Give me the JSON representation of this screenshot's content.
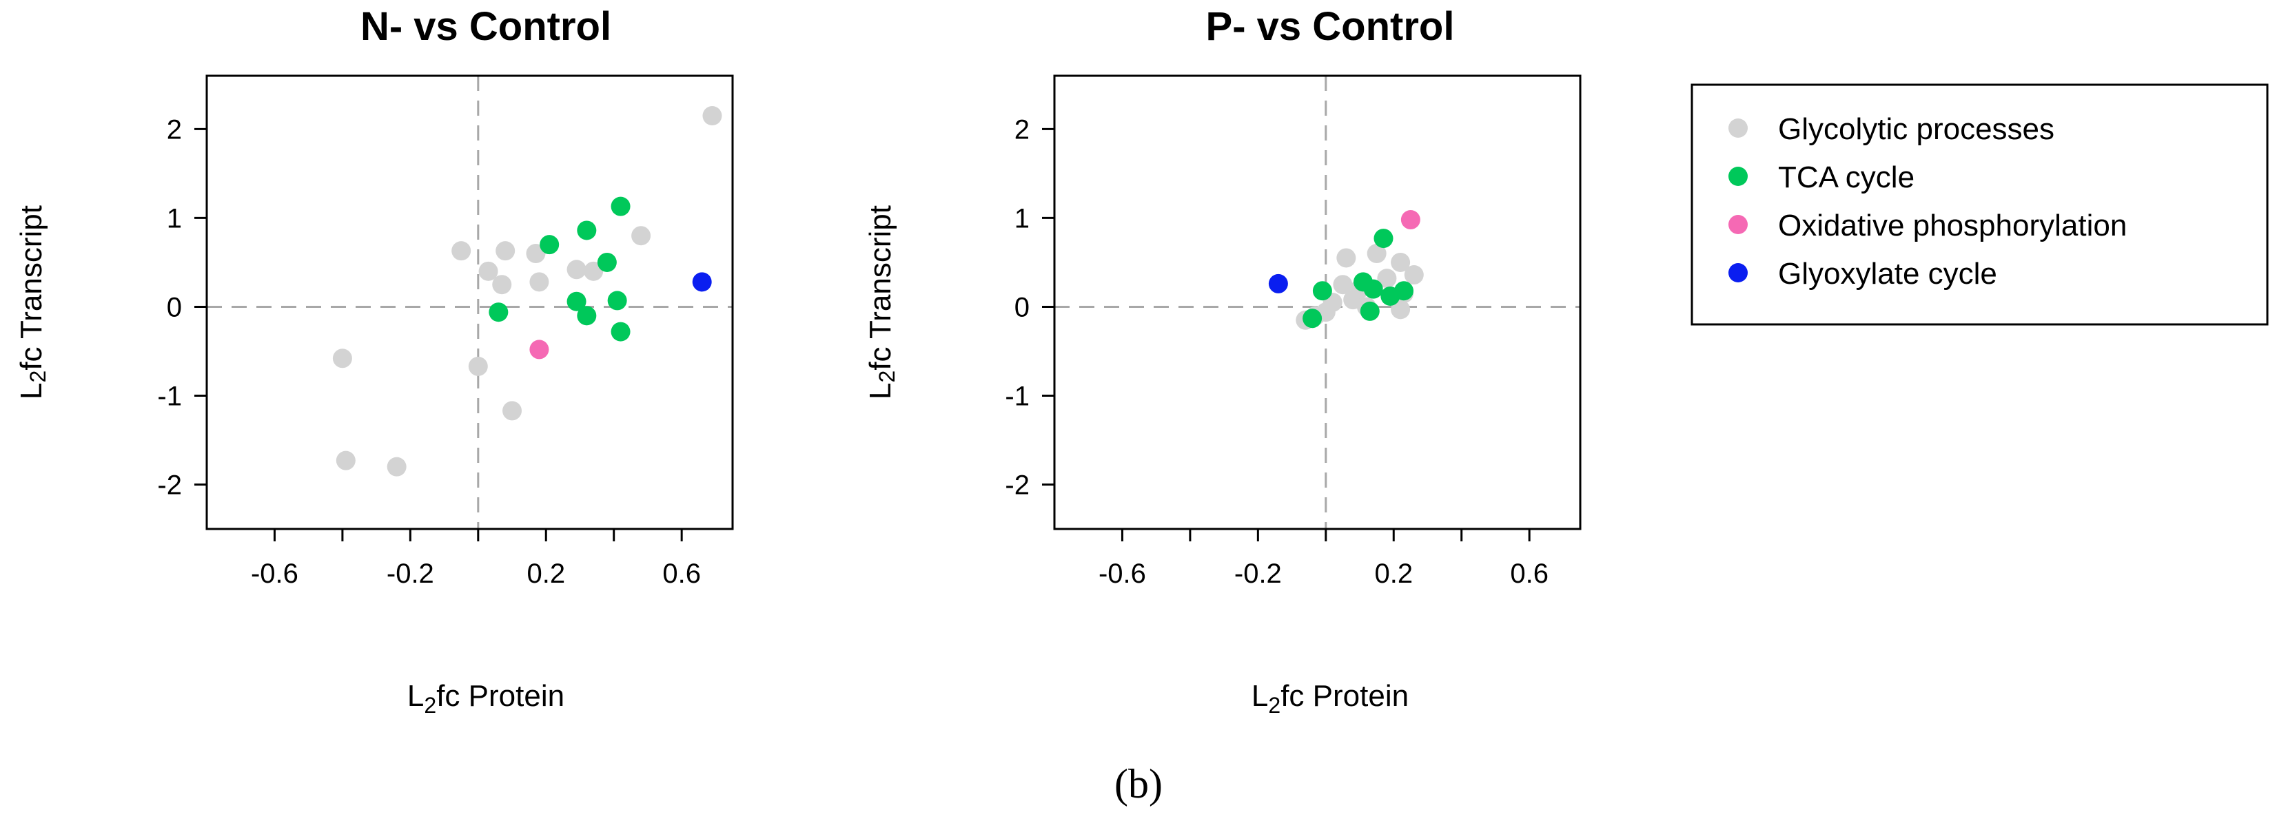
{
  "chart_data": [
    {
      "type": "scatter",
      "title": "N- vs Control",
      "xlabel": {
        "main": "L",
        "sub": "2",
        "rest": "fc Protein"
      },
      "ylabel": {
        "main": "L",
        "sub": "2",
        "rest": "fc Transcript"
      },
      "xlim": [
        -0.8,
        0.75
      ],
      "ylim": [
        -2.5,
        2.6
      ],
      "xticks": [
        -0.6,
        -0.4,
        -0.2,
        0,
        0.2,
        0.4,
        0.6
      ],
      "xtick_labels": [
        "-0.6",
        "",
        "-0.2",
        "",
        "0.2",
        "",
        "0.6"
      ],
      "yticks": [
        -2,
        -1,
        0,
        1,
        2
      ],
      "ytick_labels": [
        "-2",
        "-1",
        "0",
        "1",
        "2"
      ],
      "reference_lines": {
        "x": 0,
        "y": 0
      },
      "series": [
        {
          "name": "Glycolytic processes",
          "points": [
            [
              -0.4,
              -0.58
            ],
            [
              -0.39,
              -1.73
            ],
            [
              -0.24,
              -1.8
            ],
            [
              -0.05,
              0.63
            ],
            [
              0.0,
              -0.67
            ],
            [
              0.03,
              0.4
            ],
            [
              0.07,
              0.25
            ],
            [
              0.08,
              0.63
            ],
            [
              0.1,
              -1.17
            ],
            [
              0.17,
              0.6
            ],
            [
              0.18,
              0.28
            ],
            [
              0.29,
              0.42
            ],
            [
              0.34,
              0.4
            ],
            [
              0.48,
              0.8
            ],
            [
              0.69,
              2.15
            ]
          ]
        },
        {
          "name": "TCA cycle",
          "points": [
            [
              0.06,
              -0.06
            ],
            [
              0.21,
              0.7
            ],
            [
              0.29,
              0.06
            ],
            [
              0.32,
              -0.1
            ],
            [
              0.32,
              0.86
            ],
            [
              0.38,
              0.5
            ],
            [
              0.41,
              0.07
            ],
            [
              0.42,
              -0.28
            ],
            [
              0.42,
              1.13
            ]
          ]
        },
        {
          "name": "Oxidative phosphorylation",
          "points": [
            [
              0.18,
              -0.48
            ]
          ]
        },
        {
          "name": "Glyoxylate cycle",
          "points": [
            [
              0.66,
              0.28
            ]
          ]
        }
      ]
    },
    {
      "type": "scatter",
      "title": "P- vs Control",
      "xlabel": {
        "main": "L",
        "sub": "2",
        "rest": "fc Protein"
      },
      "ylabel": {
        "main": "L",
        "sub": "2",
        "rest": "fc Transcript"
      },
      "xlim": [
        -0.8,
        0.75
      ],
      "ylim": [
        -2.5,
        2.6
      ],
      "xticks": [
        -0.6,
        -0.4,
        -0.2,
        0,
        0.2,
        0.4,
        0.6
      ],
      "xtick_labels": [
        "-0.6",
        "",
        "-0.2",
        "",
        "0.2",
        "",
        "0.6"
      ],
      "yticks": [
        -2,
        -1,
        0,
        1,
        2
      ],
      "ytick_labels": [
        "-2",
        "-1",
        "0",
        "1",
        "2"
      ],
      "reference_lines": {
        "x": 0,
        "y": 0
      },
      "series": [
        {
          "name": "Glycolytic processes",
          "points": [
            [
              -0.06,
              -0.15
            ],
            [
              -0.03,
              -0.1
            ],
            [
              0.0,
              -0.06
            ],
            [
              0.02,
              0.05
            ],
            [
              0.05,
              0.25
            ],
            [
              0.06,
              0.55
            ],
            [
              0.08,
              0.08
            ],
            [
              0.1,
              0.2
            ],
            [
              0.12,
              0.0
            ],
            [
              0.15,
              0.6
            ],
            [
              0.18,
              0.32
            ],
            [
              0.22,
              0.5
            ],
            [
              0.23,
              0.15
            ],
            [
              0.22,
              -0.03
            ],
            [
              0.26,
              0.36
            ]
          ]
        },
        {
          "name": "TCA cycle",
          "points": [
            [
              -0.04,
              -0.13
            ],
            [
              -0.01,
              0.18
            ],
            [
              0.11,
              0.28
            ],
            [
              0.13,
              -0.05
            ],
            [
              0.14,
              0.2
            ],
            [
              0.17,
              0.77
            ],
            [
              0.19,
              0.12
            ],
            [
              0.23,
              0.18
            ]
          ]
        },
        {
          "name": "Oxidative phosphorylation",
          "points": [
            [
              0.25,
              0.98
            ]
          ]
        },
        {
          "name": "Glyoxylate cycle",
          "points": [
            [
              -0.14,
              0.26
            ]
          ]
        }
      ]
    }
  ],
  "legend": {
    "items": [
      {
        "label": "Glycolytic processes",
        "color": "#d3d3d3"
      },
      {
        "label": "TCA cycle",
        "color": "#00c85a"
      },
      {
        "label": "Oxidative phosphorylation",
        "color": "#f569b4"
      },
      {
        "label": "Glyoxylate cycle",
        "color": "#0a1ef0"
      }
    ]
  },
  "colors": {
    "Glycolytic processes": "#d3d3d3",
    "TCA cycle": "#00c85a",
    "Oxidative phosphorylation": "#f569b4",
    "Glyoxylate cycle": "#0a1ef0",
    "reference_line": "#a8a8a8"
  },
  "caption": "(b)"
}
